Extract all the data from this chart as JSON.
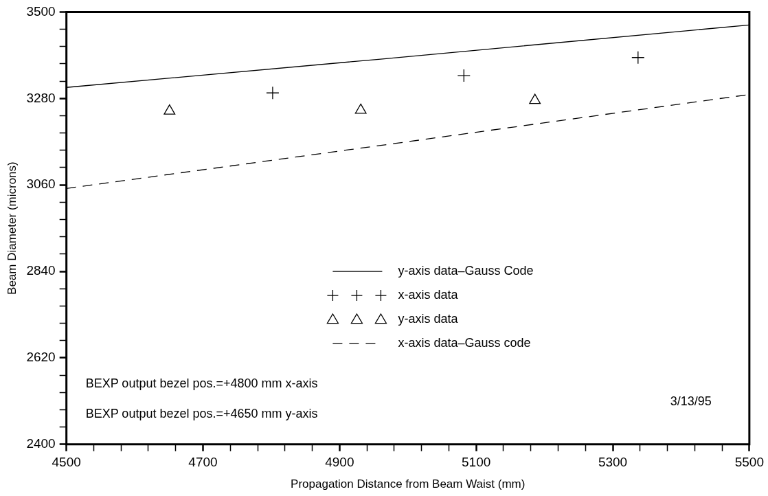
{
  "chart_data": {
    "type": "scatter",
    "xlabel": "Propagation Distance from Beam Waist (mm)",
    "ylabel": "Beam Diameter (microns)",
    "xlim": [
      4500,
      5500
    ],
    "ylim": [
      2400,
      3500
    ],
    "xticks": [
      4500,
      {
        "value": 4540,
        "label": null
      },
      {
        "value": 4580,
        "label": null
      },
      {
        "value": 4620,
        "label": null
      },
      {
        "value": 4660,
        "label": null
      },
      4700,
      {
        "value": 4740,
        "label": null
      },
      {
        "value": 4780,
        "label": null
      },
      {
        "value": 4820,
        "label": null
      },
      {
        "value": 4860,
        "label": null
      },
      4900,
      {
        "value": 4940,
        "label": null
      },
      {
        "value": 4980,
        "label": null
      },
      {
        "value": 5020,
        "label": null
      },
      {
        "value": 5060,
        "label": null
      },
      5100,
      {
        "value": 5140,
        "label": null
      },
      {
        "value": 5180,
        "label": null
      },
      {
        "value": 5220,
        "label": null
      },
      {
        "value": 5260,
        "label": null
      },
      5300,
      {
        "value": 5340,
        "label": null
      },
      {
        "value": 5380,
        "label": null
      },
      {
        "value": 5420,
        "label": null
      },
      {
        "value": 5460,
        "label": null
      },
      5500
    ],
    "yticks": [
      2400,
      {
        "value": 2444,
        "label": null
      },
      {
        "value": 2488,
        "label": null
      },
      {
        "value": 2532,
        "label": null
      },
      {
        "value": 2576,
        "label": null
      },
      2620,
      {
        "value": 2664,
        "label": null
      },
      {
        "value": 2708,
        "label": null
      },
      {
        "value": 2752,
        "label": null
      },
      {
        "value": 2796,
        "label": null
      },
      2840,
      {
        "value": 2884,
        "label": null
      },
      {
        "value": 2928,
        "label": null
      },
      {
        "value": 2972,
        "label": null
      },
      {
        "value": 3016,
        "label": null
      },
      3060,
      {
        "value": 3104,
        "label": null
      },
      {
        "value": 3148,
        "label": null
      },
      {
        "value": 3192,
        "label": null
      },
      {
        "value": 3236,
        "label": null
      },
      3280,
      {
        "value": 3324,
        "label": null
      },
      {
        "value": 3368,
        "label": null
      },
      {
        "value": 3412,
        "label": null
      },
      {
        "value": 3456,
        "label": null
      },
      3500
    ],
    "grid": false,
    "legend": "right",
    "series": [
      {
        "name": "y-axis data–Gauss Code",
        "type": "line",
        "color": "#000000",
        "line_style": "solid",
        "marker": "none",
        "x": [
          4500,
          4960,
          5500
        ],
        "values": [
          3308,
          3380,
          3467
        ]
      },
      {
        "name": "x-axis data",
        "color": "#000000",
        "marker": "cross",
        "x": [
          4802,
          5082,
          5337
        ],
        "values": [
          3294,
          3338,
          3384
        ]
      },
      {
        "name": "y-axis data",
        "color": "#000000",
        "marker": "triangle",
        "x": [
          4651,
          4931,
          5186
        ],
        "values": [
          3248,
          3250,
          3275
        ]
      },
      {
        "name": "x-axis data–Gauss code",
        "type": "line",
        "color": "#000000",
        "line_style": "dashed",
        "marker": "none",
        "x": [
          4500,
          5000,
          5500
        ],
        "values": [
          3051,
          3170,
          3290
        ]
      }
    ],
    "annotations": [
      "BEXP output bezel pos.=+4800 mm x-axis",
      "BEXP output bezel pos.=+4650 mm y-axis",
      "3/13/95"
    ]
  }
}
